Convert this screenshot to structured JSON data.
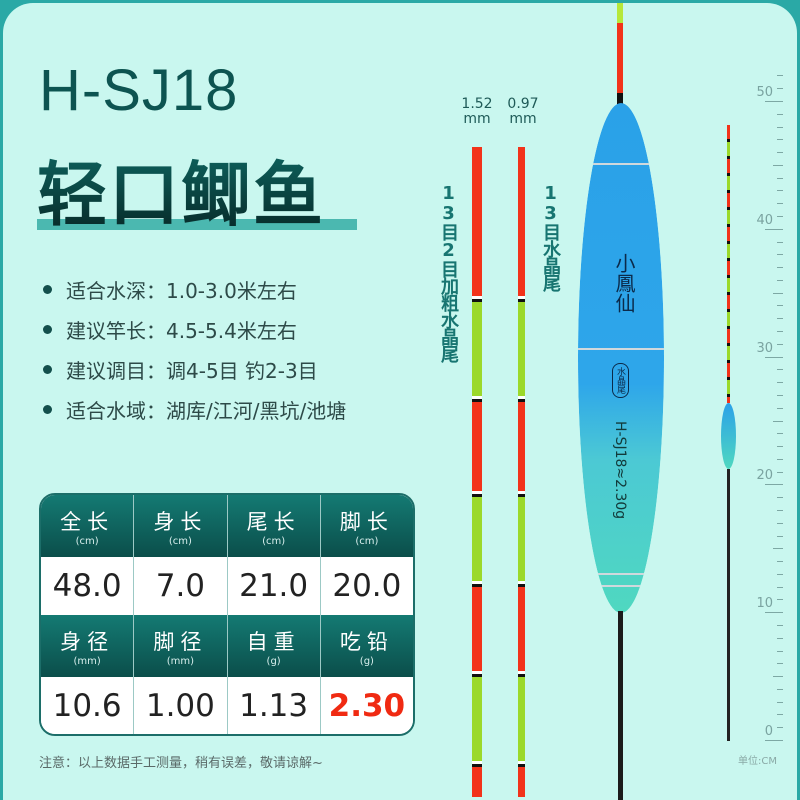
{
  "product": {
    "model": "H-SJ18",
    "name": "轻口鲫鱼"
  },
  "specs": [
    {
      "label": "适合水深：",
      "value": "1.0-3.0米左右"
    },
    {
      "label": "建议竿长：",
      "value": "4.5-5.4米左右"
    },
    {
      "label": "建议调目：",
      "value": "调4-5目 钓2-3目"
    },
    {
      "label": "适合水域：",
      "value": "湖库/江河/黑坑/池塘"
    }
  ],
  "table": {
    "row1": [
      {
        "label": "全长",
        "unit": "(cm)",
        "value": "48.0"
      },
      {
        "label": "身长",
        "unit": "(cm)",
        "value": "7.0"
      },
      {
        "label": "尾长",
        "unit": "(cm)",
        "value": "21.0"
      },
      {
        "label": "脚长",
        "unit": "(cm)",
        "value": "20.0"
      }
    ],
    "row2": [
      {
        "label": "身径",
        "unit": "(mm)",
        "value": "10.6"
      },
      {
        "label": "脚径",
        "unit": "(mm)",
        "value": "1.00"
      },
      {
        "label": "自重",
        "unit": "(g)",
        "value": "1.13"
      },
      {
        "label": "吃铅",
        "unit": "(g)",
        "value": "2.30"
      }
    ],
    "highlight_color": "#f02a12"
  },
  "note": "注意：以上数据手工测量，稍有误差，敬请谅解~",
  "tails": [
    {
      "diameter": "1.52",
      "unit": "mm",
      "label": "13目2目加粗水晶尾"
    },
    {
      "diameter": "0.97",
      "unit": "mm",
      "label": "13目水晶尾"
    }
  ],
  "float_body": {
    "brand": "小鳳仙",
    "badge": "水晶尾",
    "marking": "H-SJ18≈2.30g"
  },
  "ruler": {
    "ticks": [
      "50",
      "40",
      "30",
      "20",
      "10",
      "0"
    ],
    "unit": "单位:CM"
  },
  "colors": {
    "background": "#c9f7ef",
    "primary": "#0d5451",
    "tail_red": "#f2331a",
    "tail_green": "#9bd92a"
  }
}
